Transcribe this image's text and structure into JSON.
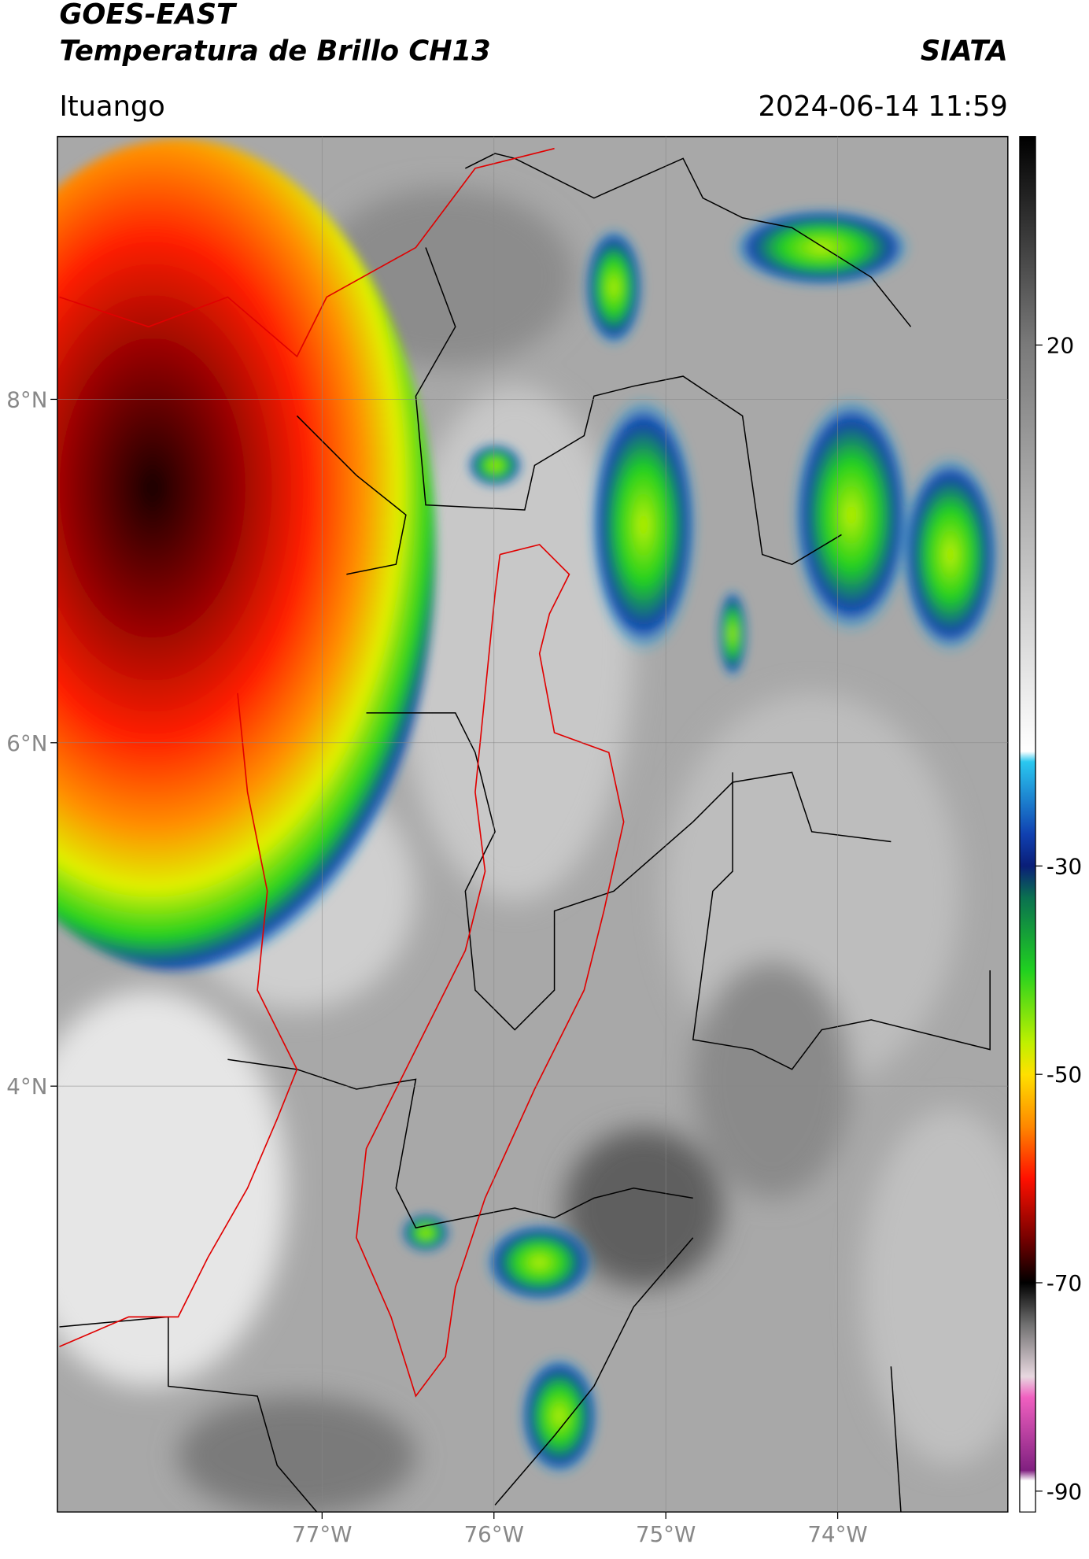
{
  "header": {
    "title": "GOES-EAST",
    "subtitle": "Temperatura de Brillo CH13",
    "brand": "SIATA",
    "location": "Ituango",
    "datetime": "2024-06-14 11:59"
  },
  "map": {
    "type": "map",
    "xlim": [
      -78.54,
      -73.01
    ],
    "ylim": [
      1.52,
      9.53
    ],
    "xticks": [
      {
        "value": -77,
        "label": "77°W"
      },
      {
        "value": -76,
        "label": "76°W"
      },
      {
        "value": -75,
        "label": "75°W"
      },
      {
        "value": -74,
        "label": "74°W"
      }
    ],
    "yticks": [
      {
        "value": 8,
        "label": "8°N"
      },
      {
        "value": 6,
        "label": "6°N"
      },
      {
        "value": 4,
        "label": "4°N"
      }
    ],
    "grid": true
  },
  "colorbar": {
    "clim": [
      -92,
      40
    ],
    "ticks": [
      20,
      -30,
      -50,
      -70,
      -90
    ],
    "colormap": [
      {
        "value": 40,
        "color": "#000000"
      },
      {
        "value": 20,
        "color": "#7a7a7a"
      },
      {
        "value": -19,
        "color": "#ffffff"
      },
      {
        "value": -20,
        "color": "#2ac8f0"
      },
      {
        "value": -27,
        "color": "#1040b0"
      },
      {
        "value": -30,
        "color": "#0a1e78"
      },
      {
        "value": -33,
        "color": "#0a7050"
      },
      {
        "value": -40,
        "color": "#20d020"
      },
      {
        "value": -47,
        "color": "#c0f000"
      },
      {
        "value": -50,
        "color": "#ffe000"
      },
      {
        "value": -55,
        "color": "#ff8800"
      },
      {
        "value": -60,
        "color": "#ff1000"
      },
      {
        "value": -66,
        "color": "#700000"
      },
      {
        "value": -70,
        "color": "#000000"
      },
      {
        "value": -74,
        "color": "#707070"
      },
      {
        "value": -79,
        "color": "#e8d8e0"
      },
      {
        "value": -81,
        "color": "#f060c0"
      },
      {
        "value": -88,
        "color": "#802080"
      },
      {
        "value": -89,
        "color": "#ffffff"
      },
      {
        "value": -92,
        "color": "#ffffff"
      }
    ]
  }
}
